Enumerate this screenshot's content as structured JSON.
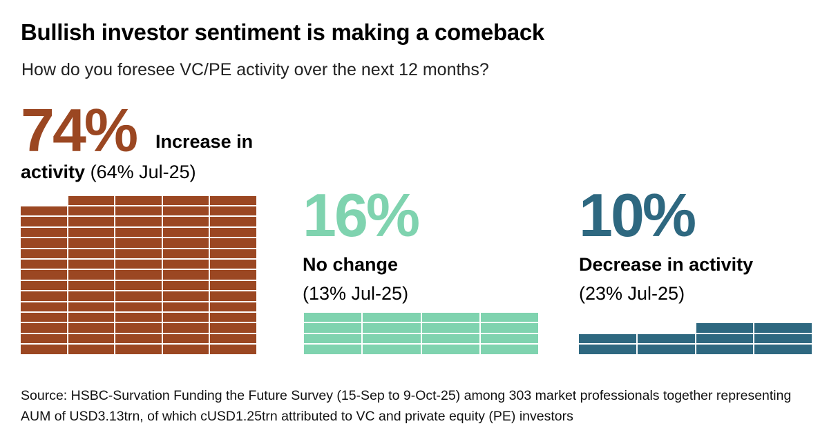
{
  "title": "Bullish investor sentiment is making a comeback",
  "subtitle": "How do you foresee VC/PE activity over the next 12 months?",
  "chart_data": {
    "type": "waffle",
    "title": "Bullish investor sentiment is making a comeback",
    "subtitle": "How do you foresee VC/PE activity over the next 12 months?",
    "unit": "%",
    "series": [
      {
        "name": "Increase in activity",
        "value": 74,
        "value_label": "74%",
        "label_bold_1": "Increase in",
        "label_bold_2": "activity",
        "comparison": "(64% Jul-25)",
        "previous_value": 64,
        "color": "#9B4722",
        "columns": 5
      },
      {
        "name": "No change",
        "value": 16,
        "value_label": "16%",
        "label_bold": "No change",
        "comparison": "(13% Jul-25)",
        "previous_value": 13,
        "color": "#7FD3AF",
        "columns": 4
      },
      {
        "name": "Decrease in activity",
        "value": 10,
        "value_label": "10%",
        "label_bold": "Decrease in activity",
        "comparison": "(23% Jul-25)",
        "previous_value": 23,
        "color": "#2E6880",
        "columns": 4
      }
    ]
  },
  "source": "Source: HSBC-Survation Funding the Future Survey (15-Sep to 9-Oct-25) among 303 market professionals together representing AUM of USD3.13trn, of which cUSD1.25trn attributed to VC and private equity (PE) investors"
}
